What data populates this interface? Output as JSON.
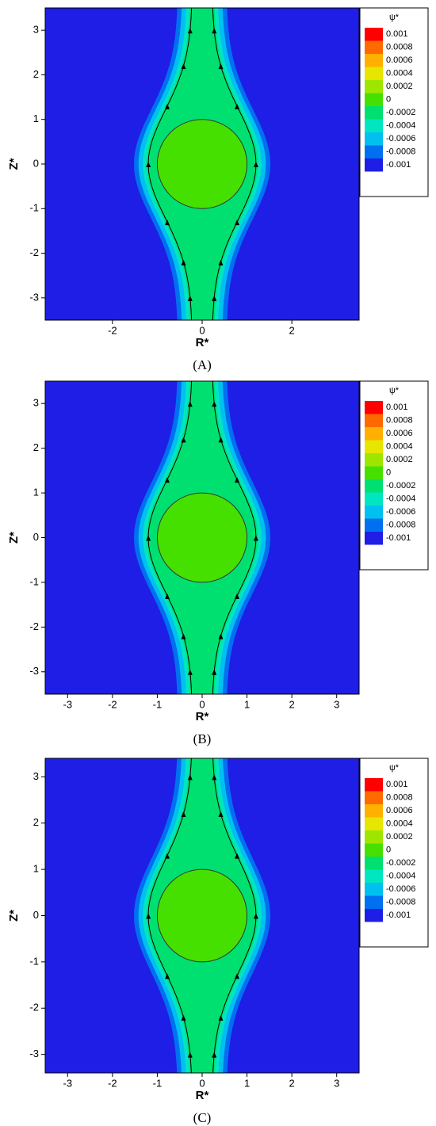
{
  "chart_data": [
    {
      "type": "contour",
      "panel_label": "(A)",
      "xlabel": "R*",
      "ylabel": "Z*",
      "xlim": [
        -3.5,
        3.5
      ],
      "ylim": [
        -3.5,
        3.5
      ],
      "xticks": [
        -2,
        0,
        2
      ],
      "yticks": [
        -3,
        -2,
        -1,
        0,
        1,
        2,
        3
      ],
      "colorbar_title": "ψ*",
      "levels": [
        0.001,
        0.0008,
        0.0006,
        0.0004,
        0.0002,
        0,
        -0.0002,
        -0.0004,
        -0.0006,
        -0.0008,
        -0.001
      ],
      "colors": [
        "#ff0000",
        "#ff6a00",
        "#ffb000",
        "#e6e600",
        "#9ee600",
        "#46e000",
        "#00e070",
        "#00e6c0",
        "#00c0f0",
        "#0070f0",
        "#1e1ee6"
      ]
    },
    {
      "type": "contour",
      "panel_label": "(B)",
      "xlabel": "R*",
      "ylabel": "Z*",
      "xlim": [
        -3.5,
        3.5
      ],
      "ylim": [
        -3.5,
        3.5
      ],
      "xticks": [
        -3,
        -2,
        -1,
        0,
        1,
        2,
        3
      ],
      "yticks": [
        -3,
        -2,
        -1,
        0,
        1,
        2,
        3
      ],
      "colorbar_title": "ψ*",
      "levels": [
        0.001,
        0.0008,
        0.0006,
        0.0004,
        0.0002,
        0,
        -0.0002,
        -0.0004,
        -0.0006,
        -0.0008,
        -0.001
      ],
      "colors": [
        "#ff0000",
        "#ff6a00",
        "#ffb000",
        "#e6e600",
        "#9ee600",
        "#46e000",
        "#00e070",
        "#00e6c0",
        "#00c0f0",
        "#0070f0",
        "#1e1ee6"
      ]
    },
    {
      "type": "contour",
      "panel_label": "(C)",
      "xlabel": "R*",
      "ylabel": "Z*",
      "xlim": [
        -3.5,
        3.5
      ],
      "ylim": [
        -3.4,
        3.4
      ],
      "xticks": [
        -3,
        -2,
        -1,
        0,
        1,
        2,
        3
      ],
      "yticks": [
        -3,
        -2,
        -1,
        0,
        1,
        2,
        3
      ],
      "colorbar_title": "ψ*",
      "levels": [
        0.001,
        0.0008,
        0.0006,
        0.0004,
        0.0002,
        0,
        -0.0002,
        -0.0004,
        -0.0006,
        -0.0008,
        -0.001
      ],
      "colors": [
        "#ff0000",
        "#ff6a00",
        "#ffb000",
        "#e6e600",
        "#9ee600",
        "#46e000",
        "#00e070",
        "#00e6c0",
        "#00c0f0",
        "#0070f0",
        "#1e1ee6"
      ]
    }
  ]
}
